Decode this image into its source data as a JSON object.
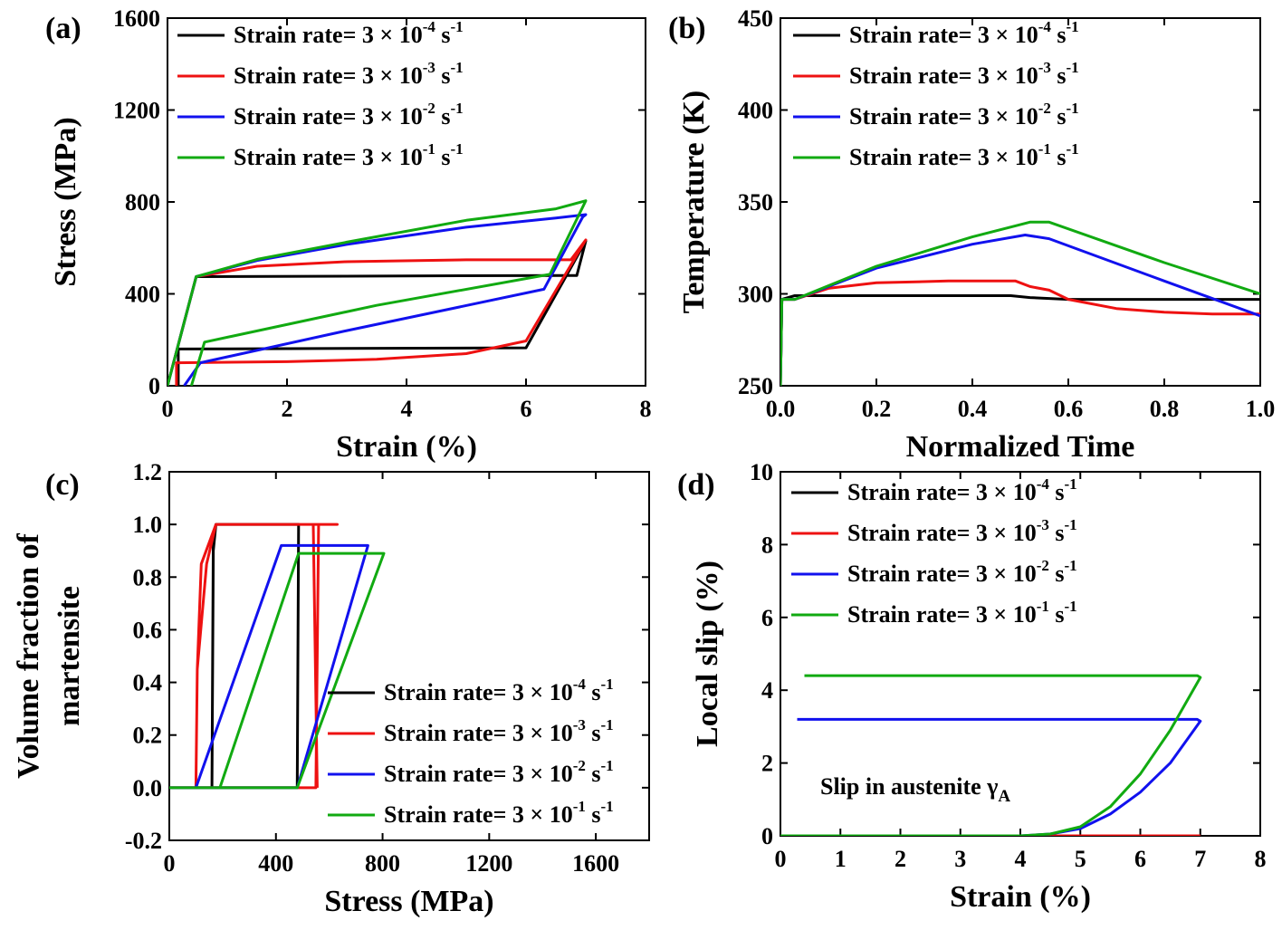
{
  "legend_prefix": "Strain rate= 3 × 10",
  "legend_suffix": " s",
  "legend_unit_exp": "-1",
  "colors": {
    "black": "#000000",
    "red": "#ee1111",
    "blue": "#1111ee",
    "green": "#11aa11"
  },
  "chart_data": [
    {
      "panel": "(a)",
      "type": "line",
      "xlabel": "Strain (%)",
      "ylabel": "Stress (MPa)",
      "xlim": [
        0,
        8
      ],
      "ylim": [
        0,
        1600
      ],
      "xticks": [
        "0",
        "2",
        "4",
        "6",
        "8"
      ],
      "yticks": [
        "0",
        "400",
        "800",
        "1200",
        "1600"
      ],
      "legend_position": "top-left",
      "series": [
        {
          "name": "Strain rate= 3 × 10-4 s-1",
          "exp": "-4",
          "color": "black",
          "x": [
            0,
            0.48,
            6.6,
            6.85,
            7.0,
            6.0,
            0.18,
            0.18
          ],
          "y": [
            0,
            475,
            480,
            480,
            630,
            165,
            160,
            0
          ]
        },
        {
          "name": "Strain rate= 3 × 10-3 s-1",
          "exp": "-3",
          "color": "red",
          "x": [
            0,
            0.48,
            1.5,
            3,
            5,
            6.6,
            6.75,
            7.0,
            6.0,
            5.0,
            3.5,
            2.0,
            0.15,
            0.15
          ],
          "y": [
            0,
            475,
            520,
            540,
            548,
            548,
            548,
            635,
            195,
            140,
            115,
            105,
            100,
            0
          ]
        },
        {
          "name": "Strain rate= 3 × 10-2 s-1",
          "exp": "-2",
          "color": "blue",
          "x": [
            0,
            0.48,
            1.5,
            3,
            5,
            6.5,
            7.0,
            6.95,
            6.3,
            3.0,
            0.55,
            0.28
          ],
          "y": [
            0,
            475,
            545,
            615,
            690,
            730,
            745,
            735,
            420,
            240,
            100,
            0
          ]
        },
        {
          "name": "Strain rate= 3 × 10-1 s-1",
          "exp": "-1",
          "color": "green",
          "x": [
            0,
            0.48,
            1.5,
            3,
            5,
            6.5,
            7.0,
            6.4,
            3.5,
            0.62,
            0.4
          ],
          "y": [
            0,
            475,
            550,
            625,
            720,
            770,
            805,
            485,
            350,
            190,
            0
          ]
        }
      ]
    },
    {
      "panel": "(b)",
      "type": "line",
      "xlabel": "Normalized Time",
      "ylabel": "Temperature (K)",
      "xlim": [
        0,
        1.0
      ],
      "ylim": [
        250,
        450
      ],
      "xticks": [
        "0.0",
        "0.2",
        "0.4",
        "0.6",
        "0.8",
        "1.0"
      ],
      "yticks": [
        "250",
        "300",
        "350",
        "400",
        "450"
      ],
      "legend_position": "top-left",
      "series": [
        {
          "name": "Strain rate= 3 × 10-4 s-1",
          "exp": "-4",
          "color": "black",
          "x": [
            0,
            0.003,
            0.03,
            0.2,
            0.48,
            0.52,
            0.6,
            1.0
          ],
          "y": [
            250,
            297,
            299,
            299,
            299,
            298,
            297,
            297
          ]
        },
        {
          "name": "Strain rate= 3 × 10-3 s-1",
          "exp": "-3",
          "color": "red",
          "x": [
            0,
            0.003,
            0.03,
            0.1,
            0.2,
            0.35,
            0.49,
            0.52,
            0.56,
            0.6,
            0.7,
            0.8,
            0.9,
            1.0
          ],
          "y": [
            250,
            297,
            297,
            303,
            306,
            307,
            307,
            304,
            302,
            297,
            292,
            290,
            289,
            289
          ]
        },
        {
          "name": "Strain rate= 3 × 10-2 s-1",
          "exp": "-2",
          "color": "blue",
          "x": [
            0,
            0.003,
            0.03,
            0.2,
            0.4,
            0.51,
            0.56,
            0.8,
            1.0
          ],
          "y": [
            250,
            297,
            297,
            314,
            327,
            332,
            330,
            307,
            288
          ]
        },
        {
          "name": "Strain rate= 3 × 10-1 s-1",
          "exp": "-1",
          "color": "green",
          "x": [
            0,
            0.003,
            0.03,
            0.2,
            0.4,
            0.52,
            0.56,
            0.8,
            1.0
          ],
          "y": [
            250,
            297,
            297,
            315,
            331,
            339,
            339,
            317,
            300
          ]
        }
      ]
    },
    {
      "panel": "(c)",
      "type": "line",
      "xlabel": "Stress (MPa)",
      "ylabel": "Volume fraction of martensite",
      "ylabel_lines": [
        "Volume fraction of",
        "martensite"
      ],
      "xlim": [
        0,
        1800
      ],
      "ylim": [
        -0.2,
        1.2
      ],
      "xticks": [
        "0",
        "400",
        "800",
        "1200",
        "1600"
      ],
      "xtick_values": [
        0,
        400,
        800,
        1200,
        1600
      ],
      "yticks": [
        "-0.2",
        "0.0",
        "0.2",
        "0.4",
        "0.6",
        "0.8",
        "1.0",
        "1.2"
      ],
      "legend_position": "bottom-right",
      "series": [
        {
          "name": "Strain rate= 3 × 10-4 s-1",
          "exp": "-4",
          "color": "black",
          "x": [
            0,
            480,
            485,
            480,
            175,
            165,
            160,
            165,
            175,
            480
          ],
          "y": [
            0,
            0,
            1.0,
            1.0,
            1.0,
            0.95,
            0.0,
            0.9,
            1.0,
            1.0
          ]
        },
        {
          "name": "Strain rate= 3 × 10-3 s-1",
          "exp": "-3",
          "color": "red",
          "x": [
            0,
            480,
            550,
            560,
            630,
            540,
            175,
            120,
            105,
            100,
            105,
            140,
            175,
            540,
            555
          ],
          "y": [
            0,
            0,
            0.0,
            1.0,
            1.0,
            1.0,
            1.0,
            0.85,
            0.45,
            0.0,
            0.45,
            0.85,
            1.0,
            1.0,
            0.0
          ]
        },
        {
          "name": "Strain rate= 3 × 10-2 s-1",
          "exp": "-2",
          "color": "blue",
          "x": [
            0,
            480,
            745,
            745,
            420,
            100
          ],
          "y": [
            0,
            0,
            0.92,
            0.92,
            0.92,
            0.0
          ]
        },
        {
          "name": "Strain rate= 3 × 10-1 s-1",
          "exp": "-1",
          "color": "green",
          "x": [
            0,
            480,
            805,
            805,
            485,
            190
          ],
          "y": [
            0,
            0,
            0.89,
            0.89,
            0.89,
            0.0
          ]
        }
      ]
    },
    {
      "panel": "(d)",
      "type": "line",
      "xlabel": "Strain (%)",
      "ylabel": "Local slip (%)",
      "xlim": [
        0,
        8
      ],
      "ylim": [
        0,
        10
      ],
      "xticks": [
        "0",
        "1",
        "2",
        "3",
        "4",
        "5",
        "6",
        "7",
        "8"
      ],
      "yticks": [
        "0",
        "2",
        "4",
        "6",
        "8",
        "10"
      ],
      "legend_position": "top-left",
      "annotation": "Slip in austenite γ",
      "annotation_sub": "A",
      "series": [
        {
          "name": "Strain rate= 3 × 10-4 s-1",
          "exp": "-4",
          "color": "black",
          "x": [
            0,
            7.0
          ],
          "y": [
            0,
            0
          ]
        },
        {
          "name": "Strain rate= 3 × 10-3 s-1",
          "exp": "-3",
          "color": "red",
          "x": [
            0,
            7.0
          ],
          "y": [
            0,
            0
          ]
        },
        {
          "name": "Strain rate= 3 × 10-2 s-1",
          "exp": "-2",
          "color": "blue",
          "x": [
            0,
            4.0,
            4.5,
            5.0,
            5.5,
            6.0,
            6.5,
            7.0,
            6.95,
            0.28
          ],
          "y": [
            0,
            0,
            0.05,
            0.2,
            0.6,
            1.2,
            2.0,
            3.15,
            3.2,
            3.2
          ]
        },
        {
          "name": "Strain rate= 3 × 10-1 s-1",
          "exp": "-1",
          "color": "green",
          "x": [
            0,
            4.0,
            4.5,
            5.0,
            5.5,
            6.0,
            6.5,
            7.0,
            6.95,
            0.4
          ],
          "y": [
            0,
            0,
            0.05,
            0.25,
            0.8,
            1.7,
            2.9,
            4.35,
            4.4,
            4.4
          ]
        }
      ]
    }
  ]
}
